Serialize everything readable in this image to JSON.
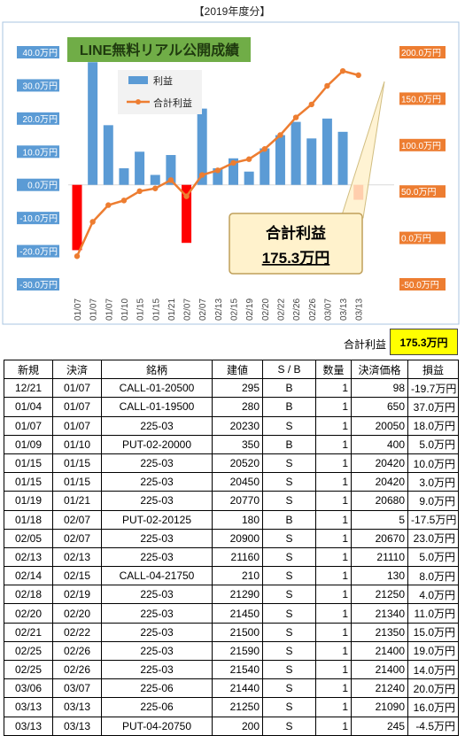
{
  "chart_data": {
    "type": "bar",
    "title": "【2019年度分】",
    "banner": "LINE無料リアル公開成績",
    "categories": [
      "01/07",
      "01/07",
      "01/07",
      "01/10",
      "01/15",
      "01/15",
      "01/21",
      "02/07",
      "02/07",
      "02/13",
      "02/15",
      "02/19",
      "02/20",
      "02/22",
      "02/26",
      "02/26",
      "03/07",
      "03/13",
      "03/13"
    ],
    "series": [
      {
        "name": "利益",
        "type": "bar",
        "axis": "left",
        "color": "#5b9bd5",
        "negative_color": "#ff0000",
        "values": [
          -19.7,
          37.0,
          18.0,
          5.0,
          10.0,
          3.0,
          9.0,
          -17.5,
          23.0,
          5.0,
          8.0,
          4.0,
          11.0,
          15.0,
          19.0,
          14.0,
          20.0,
          16.0,
          -4.5
        ]
      },
      {
        "name": "合計利益",
        "type": "line",
        "axis": "right",
        "color": "#ed7d31",
        "values": [
          -19.7,
          17.3,
          35.3,
          40.3,
          50.3,
          53.3,
          62.3,
          44.8,
          67.8,
          72.8,
          80.8,
          84.8,
          95.8,
          110.8,
          129.8,
          143.8,
          163.8,
          179.8,
          175.3
        ]
      }
    ],
    "left_axis": {
      "ticks": [
        "40.0万円",
        "30.0万円",
        "20.0万円",
        "10.0万円",
        "0.0万円",
        "-10.0万円",
        "-20.0万円",
        "-30.0万円"
      ],
      "ylim": [
        -30,
        40
      ],
      "tick_color": "#5b9bd5"
    },
    "right_axis": {
      "ticks": [
        "200.0万円",
        "150.0万円",
        "100.0万円",
        "50.0万円",
        "0.0万円",
        "-50.0万円"
      ],
      "ylim": [
        -50,
        200
      ],
      "tick_color": "#ed7d31"
    },
    "legend": {
      "placement": "top-left",
      "bar_label": "利益",
      "line_label": "合計利益"
    },
    "callout": {
      "label": "合計利益",
      "value": "175.3万円"
    }
  },
  "summary": {
    "label": "合計利益",
    "value": "175.3万円"
  },
  "table": {
    "headers": [
      "新規",
      "決済",
      "銘柄",
      "建値",
      "S / B",
      "数量",
      "決済価格",
      "損益"
    ],
    "rows": [
      [
        "12/21",
        "01/07",
        "CALL-01-20500",
        "295",
        "B",
        "1",
        "98",
        "-19.7万円"
      ],
      [
        "01/04",
        "01/07",
        "CALL-01-19500",
        "280",
        "B",
        "1",
        "650",
        "37.0万円"
      ],
      [
        "01/07",
        "01/07",
        "225-03",
        "20230",
        "S",
        "1",
        "20050",
        "18.0万円"
      ],
      [
        "01/09",
        "01/10",
        "PUT-02-20000",
        "350",
        "B",
        "1",
        "400",
        "5.0万円"
      ],
      [
        "01/15",
        "01/15",
        "225-03",
        "20520",
        "S",
        "1",
        "20420",
        "10.0万円"
      ],
      [
        "01/15",
        "01/15",
        "225-03",
        "20450",
        "S",
        "1",
        "20420",
        "3.0万円"
      ],
      [
        "01/19",
        "01/21",
        "225-03",
        "20770",
        "S",
        "1",
        "20680",
        "9.0万円"
      ],
      [
        "01/18",
        "02/07",
        "PUT-02-20125",
        "180",
        "B",
        "1",
        "5",
        "-17.5万円"
      ],
      [
        "02/05",
        "02/07",
        "225-03",
        "20900",
        "S",
        "1",
        "20670",
        "23.0万円"
      ],
      [
        "02/13",
        "02/13",
        "225-03",
        "21160",
        "S",
        "1",
        "21110",
        "5.0万円"
      ],
      [
        "02/14",
        "02/15",
        "CALL-04-21750",
        "210",
        "S",
        "1",
        "130",
        "8.0万円"
      ],
      [
        "02/18",
        "02/19",
        "225-03",
        "21290",
        "S",
        "1",
        "21250",
        "4.0万円"
      ],
      [
        "02/20",
        "02/20",
        "225-03",
        "21450",
        "S",
        "1",
        "21340",
        "11.0万円"
      ],
      [
        "02/21",
        "02/22",
        "225-03",
        "21500",
        "S",
        "1",
        "21350",
        "15.0万円"
      ],
      [
        "02/25",
        "02/26",
        "225-03",
        "21590",
        "S",
        "1",
        "21400",
        "19.0万円"
      ],
      [
        "02/25",
        "02/26",
        "225-03",
        "21540",
        "S",
        "1",
        "21400",
        "14.0万円"
      ],
      [
        "03/06",
        "03/07",
        "225-06",
        "21440",
        "S",
        "1",
        "21240",
        "20.0万円"
      ],
      [
        "03/13",
        "03/13",
        "225-06",
        "21250",
        "S",
        "1",
        "21090",
        "16.0万円"
      ],
      [
        "03/13",
        "03/13",
        "PUT-04-20750",
        "200",
        "S",
        "1",
        "245",
        "-4.5万円"
      ]
    ]
  }
}
